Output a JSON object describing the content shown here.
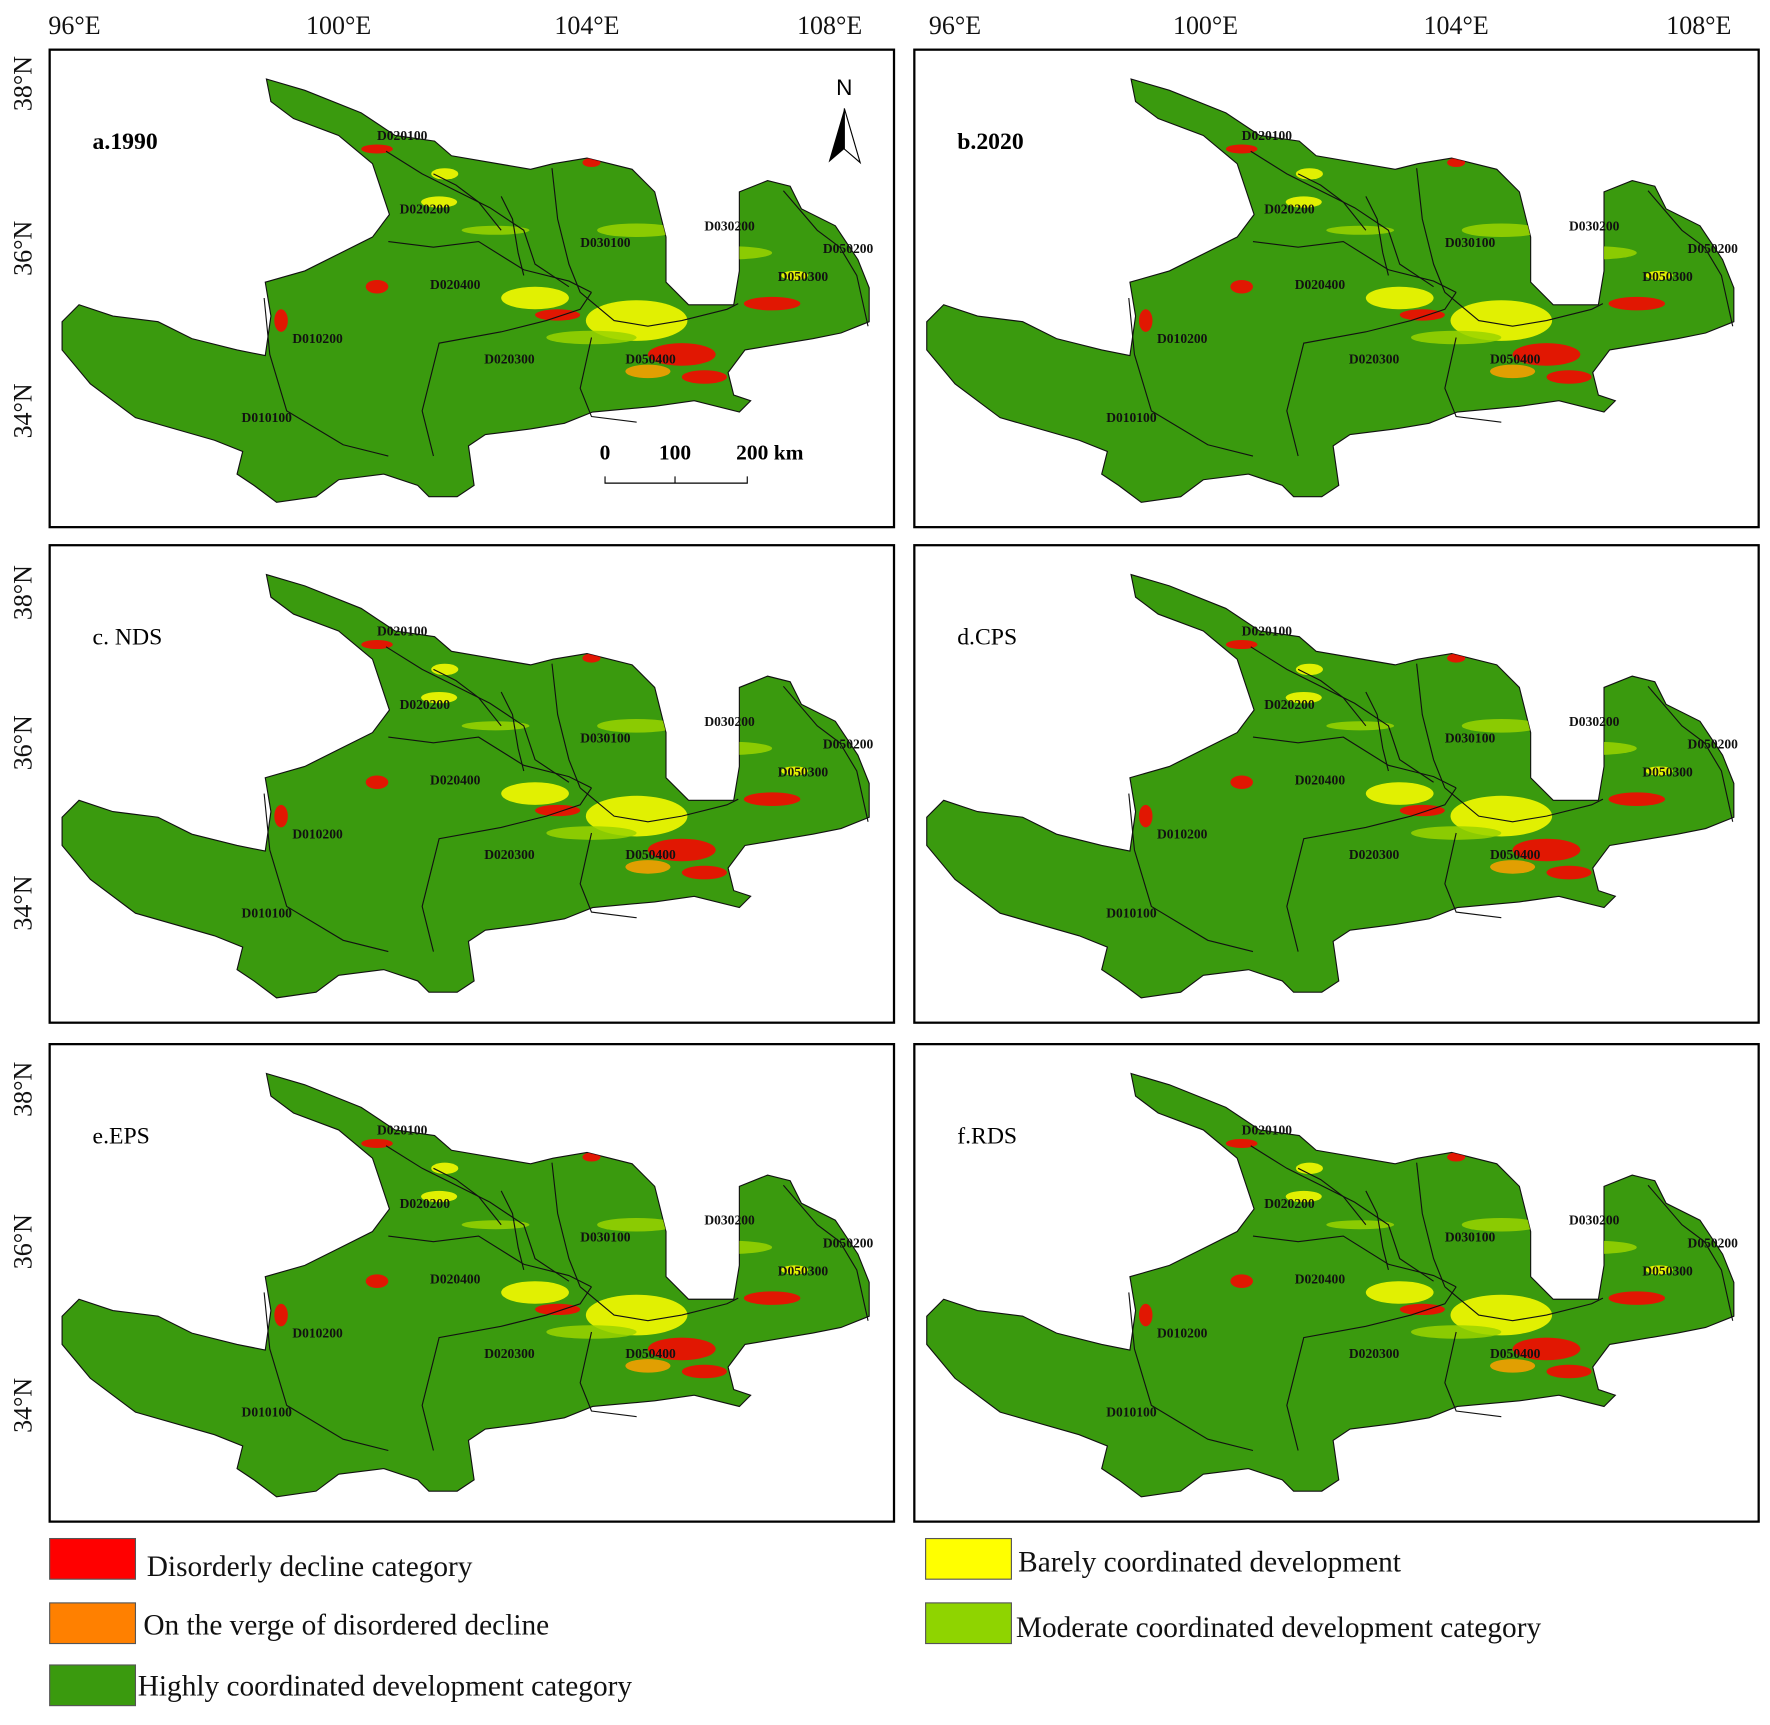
{
  "panels": [
    {
      "label": "a.1990"
    },
    {
      "label": "b.2020"
    },
    {
      "label": "c. NDS"
    },
    {
      "label": "d.CPS"
    },
    {
      "label": "e.EPS"
    },
    {
      "label": "f.RDS"
    }
  ],
  "longitude_labels": [
    "96°E",
    "100°E",
    "104°E",
    "108°E"
  ],
  "latitude_labels": [
    "38°N",
    "36°N",
    "34°N"
  ],
  "region_labels": [
    "D020100",
    "D020200",
    "D030100",
    "D030200",
    "D050200",
    "D050300",
    "D020400",
    "D010200",
    "D020300",
    "D050400",
    "D010100"
  ],
  "scale_bar": {
    "labels": [
      "0",
      "100",
      "200 km"
    ]
  },
  "north_label": "N",
  "legend": [
    {
      "label": "Disorderly decline category",
      "color": "#ff0000"
    },
    {
      "label": "On the verge of disordered decline",
      "color": "#ff8000"
    },
    {
      "label": "Highly coordinated development category",
      "color": "#3a9a0e"
    },
    {
      "label": "Barely coordinated development",
      "color": "#ffff00"
    },
    {
      "label": "Moderate coordinated development category",
      "color": "#8fd400"
    }
  ]
}
